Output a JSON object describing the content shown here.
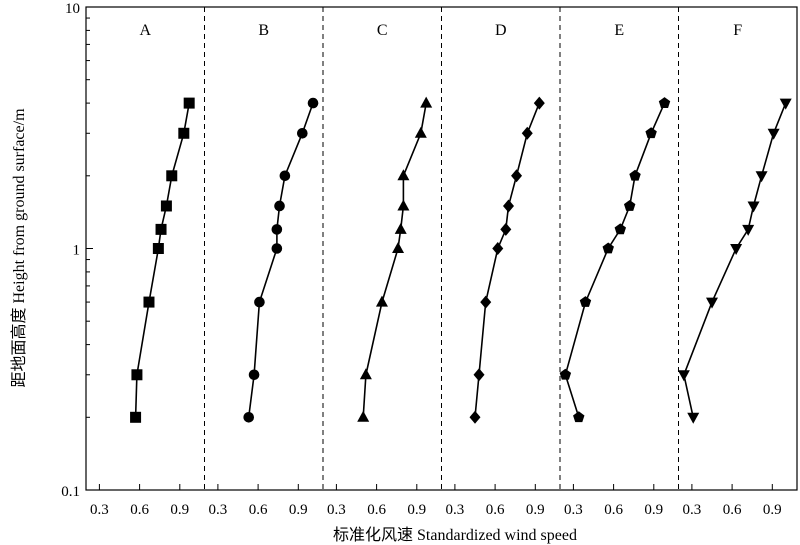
{
  "chart_data": {
    "type": "line",
    "layout": "small-multiples",
    "xlabel": "标准化风速 Standardized wind speed",
    "ylabel": "距地面高度 Height from ground surface/m",
    "y_scale": "log",
    "ylim": [
      0.1,
      10
    ],
    "y_ticks": [
      "0.1",
      "1",
      "10"
    ],
    "xlim": [
      0.2,
      1.05
    ],
    "x_ticks": [
      "0.3",
      "0.6",
      "0.9"
    ],
    "heights": [
      0.2,
      0.3,
      0.6,
      1,
      1.2,
      1.5,
      2,
      3,
      4
    ],
    "panels": [
      {
        "name": "A",
        "marker": "square",
        "x": [
          0.57,
          0.58,
          0.67,
          0.74,
          0.76,
          0.8,
          0.84,
          0.93,
          0.97
        ]
      },
      {
        "name": "B",
        "marker": "circle",
        "x": [
          0.53,
          0.57,
          0.61,
          0.74,
          0.74,
          0.76,
          0.8,
          0.93,
          1.01
        ]
      },
      {
        "name": "C",
        "marker": "triangle-up",
        "x": [
          0.5,
          0.52,
          0.64,
          0.76,
          0.78,
          0.8,
          0.8,
          0.93,
          0.97
        ]
      },
      {
        "name": "D",
        "marker": "diamond",
        "x": [
          0.45,
          0.48,
          0.53,
          0.62,
          0.68,
          0.7,
          0.76,
          0.84,
          0.93
        ]
      },
      {
        "name": "E",
        "marker": "pentagon",
        "x": [
          0.34,
          0.24,
          0.39,
          0.56,
          0.65,
          0.72,
          0.76,
          0.88,
          0.98
        ]
      },
      {
        "name": "F",
        "marker": "triangle-down",
        "x": [
          0.31,
          0.24,
          0.45,
          0.63,
          0.72,
          0.76,
          0.82,
          0.91,
          1.0
        ]
      }
    ]
  }
}
